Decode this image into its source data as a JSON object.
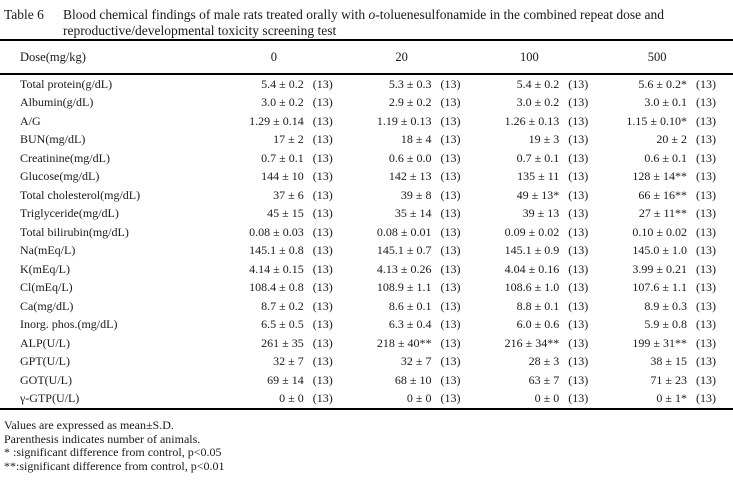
{
  "title": {
    "label": "Table 6",
    "text_before_italic": "Blood chemical findings of male rats treated orally with ",
    "italic_part": "o",
    "text_after_italic": "-toluenesulfonamide in the combined repeat dose and reproductive/developmental toxicity screening test"
  },
  "table": {
    "header": {
      "label": "Dose(mg/kg)",
      "doses": [
        "0",
        "20",
        "100",
        "500"
      ]
    },
    "rows": [
      {
        "label": "Total protein(g/dL)",
        "values": [
          "5.4 ± 0.2",
          "5.3 ± 0.3",
          "5.4 ± 0.2",
          "5.6 ± 0.2*"
        ],
        "ns": [
          "(13)",
          "(13)",
          "(13)",
          "(13)"
        ]
      },
      {
        "label": "Albumin(g/dL)",
        "values": [
          "3.0 ± 0.2",
          "2.9 ± 0.2",
          "3.0 ± 0.2",
          "3.0 ± 0.1"
        ],
        "ns": [
          "(13)",
          "(13)",
          "(13)",
          "(13)"
        ]
      },
      {
        "label": "A/G",
        "values": [
          "1.29 ± 0.14",
          "1.19 ± 0.13",
          "1.26 ± 0.13",
          "1.15 ± 0.10*"
        ],
        "ns": [
          "(13)",
          "(13)",
          "(13)",
          "(13)"
        ]
      },
      {
        "label": "BUN(mg/dL)",
        "values": [
          "17 ± 2",
          "18 ± 4",
          "19 ± 3",
          "20 ± 2"
        ],
        "ns": [
          "(13)",
          "(13)",
          "(13)",
          "(13)"
        ]
      },
      {
        "label": "Creatinine(mg/dL)",
        "values": [
          "0.7 ± 0.1",
          "0.6 ± 0.0",
          "0.7 ± 0.1",
          "0.6 ± 0.1"
        ],
        "ns": [
          "(13)",
          "(13)",
          "(13)",
          "(13)"
        ]
      },
      {
        "label": "Glucose(mg/dL)",
        "values": [
          "144 ± 10",
          "142 ± 13",
          "135 ± 11",
          "128 ± 14**"
        ],
        "ns": [
          "(13)",
          "(13)",
          "(13)",
          "(13)"
        ]
      },
      {
        "label": "Total cholesterol(mg/dL)",
        "values": [
          "37 ± 6",
          "39 ± 8",
          "49 ± 13*",
          "66 ± 16**"
        ],
        "ns": [
          "(13)",
          "(13)",
          "(13)",
          "(13)"
        ]
      },
      {
        "label": "Triglyceride(mg/dL)",
        "values": [
          "45 ± 15",
          "35 ± 14",
          "39 ± 13",
          "27 ± 11**"
        ],
        "ns": [
          "(13)",
          "(13)",
          "(13)",
          "(13)"
        ]
      },
      {
        "label": "Total bilirubin(mg/dL)",
        "values": [
          "0.08 ± 0.03",
          "0.08 ± 0.01",
          "0.09 ± 0.02",
          "0.10 ± 0.02"
        ],
        "ns": [
          "(13)",
          "(13)",
          "(13)",
          "(13)"
        ]
      },
      {
        "label": "Na(mEq/L)",
        "values": [
          "145.1 ± 0.8",
          "145.1 ± 0.7",
          "145.1 ± 0.9",
          "145.0 ± 1.0"
        ],
        "ns": [
          "(13)",
          "(13)",
          "(13)",
          "(13)"
        ]
      },
      {
        "label": "K(mEq/L)",
        "values": [
          "4.14 ± 0.15",
          "4.13 ± 0.26",
          "4.04 ± 0.16",
          "3.99 ± 0.21"
        ],
        "ns": [
          "(13)",
          "(13)",
          "(13)",
          "(13)"
        ]
      },
      {
        "label": "Cl(mEq/L)",
        "values": [
          "108.4 ± 0.8",
          "108.9 ± 1.1",
          "108.6 ± 1.0",
          "107.6 ± 1.1"
        ],
        "ns": [
          "(13)",
          "(13)",
          "(13)",
          "(13)"
        ]
      },
      {
        "label": "Ca(mg/dL)",
        "values": [
          "8.7 ± 0.2",
          "8.6 ± 0.1",
          "8.8 ± 0.1",
          "8.9 ± 0.3"
        ],
        "ns": [
          "(13)",
          "(13)",
          "(13)",
          "(13)"
        ]
      },
      {
        "label": "Inorg. phos.(mg/dL)",
        "values": [
          "6.5 ± 0.5",
          "6.3 ± 0.4",
          "6.0 ± 0.6",
          "5.9 ± 0.8"
        ],
        "ns": [
          "(13)",
          "(13)",
          "(13)",
          "(13)"
        ]
      },
      {
        "label": "ALP(U/L)",
        "values": [
          "261 ± 35",
          "218 ± 40**",
          "216 ± 34**",
          "199 ± 31**"
        ],
        "ns": [
          "(13)",
          "(13)",
          "(13)",
          "(13)"
        ]
      },
      {
        "label": "GPT(U/L)",
        "values": [
          "32 ± 7",
          "32 ± 7",
          "28 ± 3",
          "38 ± 15"
        ],
        "ns": [
          "(13)",
          "(13)",
          "(13)",
          "(13)"
        ]
      },
      {
        "label": "GOT(U/L)",
        "values": [
          "69 ± 14",
          "68 ± 10",
          "63 ± 7",
          "71 ± 23"
        ],
        "ns": [
          "(13)",
          "(13)",
          "(13)",
          "(13)"
        ]
      },
      {
        "label": "γ-GTP(U/L)",
        "values": [
          "0 ± 0",
          "0 ± 0",
          "0 ± 0",
          "0 ± 1*"
        ],
        "ns": [
          "(13)",
          "(13)",
          "(13)",
          "(13)"
        ]
      }
    ]
  },
  "footnotes": [
    "Values are expressed as mean±S.D.",
    "Parenthesis indicates number of animals.",
    "* :significant difference from control, p<0.05",
    "**:significant difference from control, p<0.01"
  ],
  "colors": {
    "background": "#ffffff",
    "text": "#191919",
    "rule": "#000000"
  }
}
